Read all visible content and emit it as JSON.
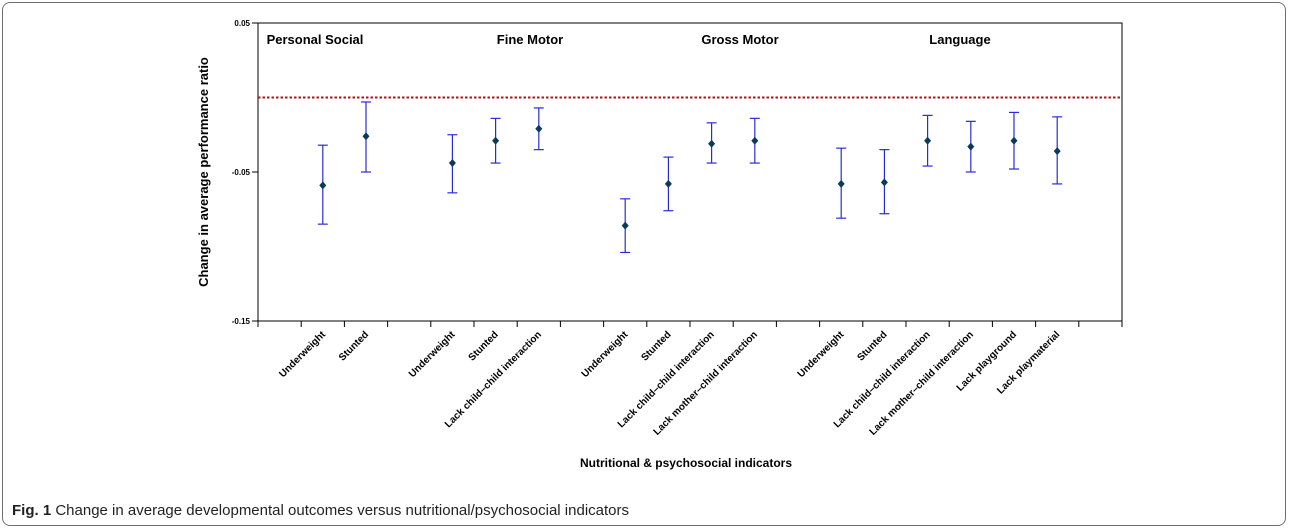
{
  "caption": {
    "label": "Fig. 1",
    "text": "Change in average developmental outcomes versus nutritional/psychosocial indicators"
  },
  "chart_data": {
    "type": "errorbar",
    "ylabel": "Change in average performance ratio",
    "xlabel": "Nutritional & psychosocial indicators",
    "ylim": [
      -0.15,
      0.05
    ],
    "yticks": [
      -0.15,
      -0.05,
      0.05
    ],
    "ytick_labels": [
      "-0.15",
      "-0.05",
      "0.05"
    ],
    "reference_line": 0,
    "colors": {
      "marker": "#0b3a5b",
      "errorbar": "#2b2bd6",
      "reference": "#b3121b"
    },
    "groups": [
      {
        "title": "Personal Social",
        "points": [
          {
            "label": "Underweight",
            "estimate": -0.059,
            "lower": -0.085,
            "upper": -0.032
          },
          {
            "label": "Stunted",
            "estimate": -0.026,
            "lower": -0.05,
            "upper": -0.003
          }
        ]
      },
      {
        "title": "Fine Motor",
        "points": [
          {
            "label": "Underweight",
            "estimate": -0.044,
            "lower": -0.064,
            "upper": -0.025
          },
          {
            "label": "Stunted",
            "estimate": -0.029,
            "lower": -0.044,
            "upper": -0.014
          },
          {
            "label": "Lack child–child interaction",
            "estimate": -0.021,
            "lower": -0.035,
            "upper": -0.007
          }
        ]
      },
      {
        "title": "Gross Motor",
        "points": [
          {
            "label": "Underweight",
            "estimate": -0.086,
            "lower": -0.104,
            "upper": -0.068
          },
          {
            "label": "Stunted",
            "estimate": -0.058,
            "lower": -0.076,
            "upper": -0.04
          },
          {
            "label": "Lack child–child interaction",
            "estimate": -0.031,
            "lower": -0.044,
            "upper": -0.017
          },
          {
            "label": "Lack mother–child interaction",
            "estimate": -0.029,
            "lower": -0.044,
            "upper": -0.014
          }
        ]
      },
      {
        "title": "Language",
        "points": [
          {
            "label": "Underweight",
            "estimate": -0.058,
            "lower": -0.081,
            "upper": -0.034
          },
          {
            "label": "Stunted",
            "estimate": -0.057,
            "lower": -0.078,
            "upper": -0.035
          },
          {
            "label": "Lack child–child interaction",
            "estimate": -0.029,
            "lower": -0.046,
            "upper": -0.012
          },
          {
            "label": "Lack mother–child interaction",
            "estimate": -0.033,
            "lower": -0.05,
            "upper": -0.016
          },
          {
            "label": "Lack playground",
            "estimate": -0.029,
            "lower": -0.048,
            "upper": -0.01
          },
          {
            "label": "Lack playmaterial",
            "estimate": -0.036,
            "lower": -0.058,
            "upper": -0.013
          }
        ]
      }
    ]
  }
}
